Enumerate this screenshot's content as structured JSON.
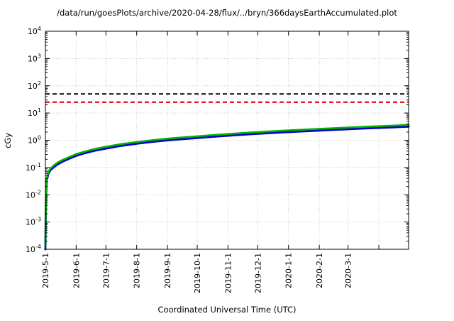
{
  "chart_data": {
    "type": "line",
    "title": "/data/run/goesPlots/archive/2020-04-28/flux/../bryn/366daysEarthAccumulated.plot",
    "xlabel": "Coordinated Universal Time (UTC)",
    "ylabel": "cGy",
    "y_scale": "log10",
    "y_exponent_range": [
      -4,
      4
    ],
    "y_ticks_exponents": [
      4,
      3,
      2,
      1,
      0,
      -1,
      -2,
      -3,
      -4
    ],
    "x_unit": "days since 2019-05-01",
    "x_range_days": [
      0,
      366
    ],
    "x_ticks": [
      {
        "day": 0,
        "label": "2019-5-1"
      },
      {
        "day": 31,
        "label": "2019-6-1"
      },
      {
        "day": 61,
        "label": "2019-7-1"
      },
      {
        "day": 92,
        "label": "2019-8-1"
      },
      {
        "day": 123,
        "label": "2019-9-1"
      },
      {
        "day": 153,
        "label": "2019-10-1"
      },
      {
        "day": 184,
        "label": "2019-11-1"
      },
      {
        "day": 214,
        "label": "2019-12-1"
      },
      {
        "day": 245,
        "label": "2020-1-1"
      },
      {
        "day": 276,
        "label": "2020-2-1"
      },
      {
        "day": 305,
        "label": "2020-3-1"
      },
      {
        "day": 336,
        "label": ""
      }
    ],
    "grid": true,
    "legend": "none",
    "thresholds": [
      {
        "name": "upper-limit-black-dashed",
        "value": 50,
        "color": "#000000"
      },
      {
        "name": "lower-limit-red-dashed",
        "value": 25,
        "color": "#e60000"
      }
    ],
    "series": [
      {
        "name": "accumulated-dose-blue",
        "color": "#0000cc",
        "width": 3,
        "points": [
          [
            0,
            0.0001
          ],
          [
            0.3,
            0.001
          ],
          [
            0.7,
            0.01
          ],
          [
            1.5,
            0.035
          ],
          [
            3,
            0.06
          ],
          [
            5,
            0.08
          ],
          [
            8,
            0.1
          ],
          [
            12,
            0.13
          ],
          [
            18,
            0.17
          ],
          [
            25,
            0.22
          ],
          [
            31,
            0.27
          ],
          [
            40,
            0.34
          ],
          [
            50,
            0.42
          ],
          [
            61,
            0.5
          ],
          [
            75,
            0.62
          ],
          [
            92,
            0.75
          ],
          [
            107,
            0.87
          ],
          [
            123,
            1.0
          ],
          [
            140,
            1.12
          ],
          [
            153,
            1.22
          ],
          [
            170,
            1.36
          ],
          [
            184,
            1.48
          ],
          [
            200,
            1.62
          ],
          [
            214,
            1.74
          ],
          [
            230,
            1.88
          ],
          [
            245,
            2.0
          ],
          [
            260,
            2.13
          ],
          [
            276,
            2.28
          ],
          [
            290,
            2.42
          ],
          [
            305,
            2.55
          ],
          [
            320,
            2.7
          ],
          [
            336,
            2.85
          ],
          [
            350,
            3.0
          ],
          [
            366,
            3.2
          ]
        ]
      },
      {
        "name": "accumulated-dose-green",
        "color": "#00b400",
        "width": 2.6,
        "points": [
          [
            0,
            0.000115
          ],
          [
            0.3,
            0.00115
          ],
          [
            0.7,
            0.0115
          ],
          [
            1.5,
            0.04
          ],
          [
            3,
            0.069
          ],
          [
            5,
            0.092
          ],
          [
            8,
            0.115
          ],
          [
            12,
            0.15
          ],
          [
            18,
            0.195
          ],
          [
            25,
            0.25
          ],
          [
            31,
            0.31
          ],
          [
            40,
            0.39
          ],
          [
            50,
            0.48
          ],
          [
            61,
            0.575
          ],
          [
            75,
            0.71
          ],
          [
            92,
            0.86
          ],
          [
            107,
            1.0
          ],
          [
            123,
            1.15
          ],
          [
            140,
            1.29
          ],
          [
            153,
            1.4
          ],
          [
            170,
            1.56
          ],
          [
            184,
            1.7
          ],
          [
            200,
            1.86
          ],
          [
            214,
            2.0
          ],
          [
            230,
            2.16
          ],
          [
            245,
            2.3
          ],
          [
            260,
            2.45
          ],
          [
            276,
            2.62
          ],
          [
            290,
            2.78
          ],
          [
            305,
            2.93
          ],
          [
            320,
            3.1
          ],
          [
            336,
            3.28
          ],
          [
            350,
            3.45
          ],
          [
            366,
            3.68
          ]
        ]
      }
    ],
    "grid_color": "#c8c8c8",
    "border_color": "#000000"
  }
}
